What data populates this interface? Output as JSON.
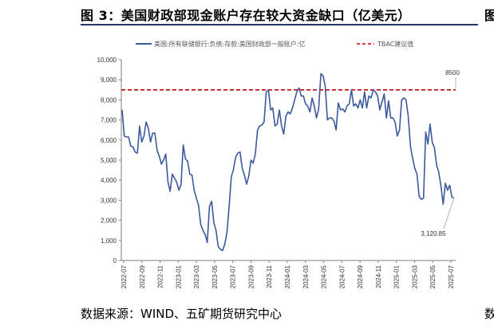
{
  "title": "图 3：美国财政部现金账户存在较大资金缺口（亿美元）",
  "source": "数据来源：WIND、五矿期货研究中心",
  "edge_glyphs": {
    "top": "图",
    "bottom": "数"
  },
  "colors": {
    "series": "#3a5a9c",
    "threshold": "#cc0000",
    "title_rule": "#1f3864"
  },
  "chart_data": {
    "type": "line",
    "title": "",
    "xlabel": "",
    "ylabel": "",
    "ylim": [
      0,
      10000
    ],
    "yticks": [
      "0",
      "1,000",
      "2,000",
      "3,000",
      "4,000",
      "5,000",
      "6,000",
      "7,000",
      "8,000",
      "9,000",
      "10,000"
    ],
    "xticks": [
      "2022-07",
      "2022-09",
      "2022-11",
      "2023-01",
      "2023-03",
      "2023-05",
      "2023-07",
      "2023-09",
      "2023-11",
      "2024-01",
      "2024-03",
      "2024-05",
      "2024-07",
      "2024-09",
      "2024-11",
      "2025-01",
      "2025-03",
      "2025-05",
      "2025-07"
    ],
    "legend_position": "top",
    "grid": false,
    "series": [
      {
        "name": "美国:所有联储银行:负债:存款:美国财政部一般账户:亿",
        "values": [
          7500,
          6200,
          6150,
          6150,
          5700,
          5650,
          5400,
          5350,
          6700,
          5900,
          6200,
          6900,
          6600,
          5900,
          6350,
          6350,
          5500,
          5200,
          4800,
          5000,
          5300,
          3900,
          3450,
          4300,
          4100,
          3900,
          3500,
          3800,
          5750,
          5050,
          4950,
          4300,
          4250,
          3500,
          3100,
          2750,
          1800,
          1500,
          1300,
          900,
          2700,
          2950,
          1900,
          1500,
          700,
          550,
          500,
          800,
          1400,
          2700,
          4150,
          4550,
          5150,
          5350,
          5400,
          4600,
          4250,
          3800,
          4200,
          5000,
          4850,
          5300,
          6500,
          6700,
          6750,
          6900,
          8400,
          8500,
          7500,
          7600,
          6700,
          6800,
          7500,
          6700,
          6300,
          7200,
          7400,
          7300,
          7600,
          8000,
          8400,
          8600,
          8200,
          8200,
          7800,
          7700,
          7400,
          8100,
          7700,
          7100,
          7550,
          9300,
          9200,
          8700,
          7000,
          7100,
          7100,
          6950,
          6500,
          7850,
          7500,
          7550,
          7400,
          7700,
          7800,
          8500,
          7700,
          7800,
          7600,
          8000,
          7600,
          8400,
          7600,
          8200,
          8100,
          8500,
          8400,
          8200,
          7500,
          7900,
          8300,
          7100,
          7950,
          7100,
          7100,
          6900,
          6200,
          6500,
          8000,
          8100,
          8000,
          7200,
          5700,
          5100,
          4600,
          4300,
          3200,
          3050,
          3100,
          6400,
          5800,
          6800,
          5900,
          5600,
          4750,
          4400,
          3700,
          2800,
          3850,
          3500,
          3750,
          3150,
          3120.85
        ]
      },
      {
        "name": "TBAC建议值",
        "values": [
          8500,
          8500
        ]
      }
    ],
    "annotations": [
      {
        "label": "8500",
        "value": 8500
      },
      {
        "label": "3,120.85",
        "value": 3120.85
      }
    ]
  }
}
